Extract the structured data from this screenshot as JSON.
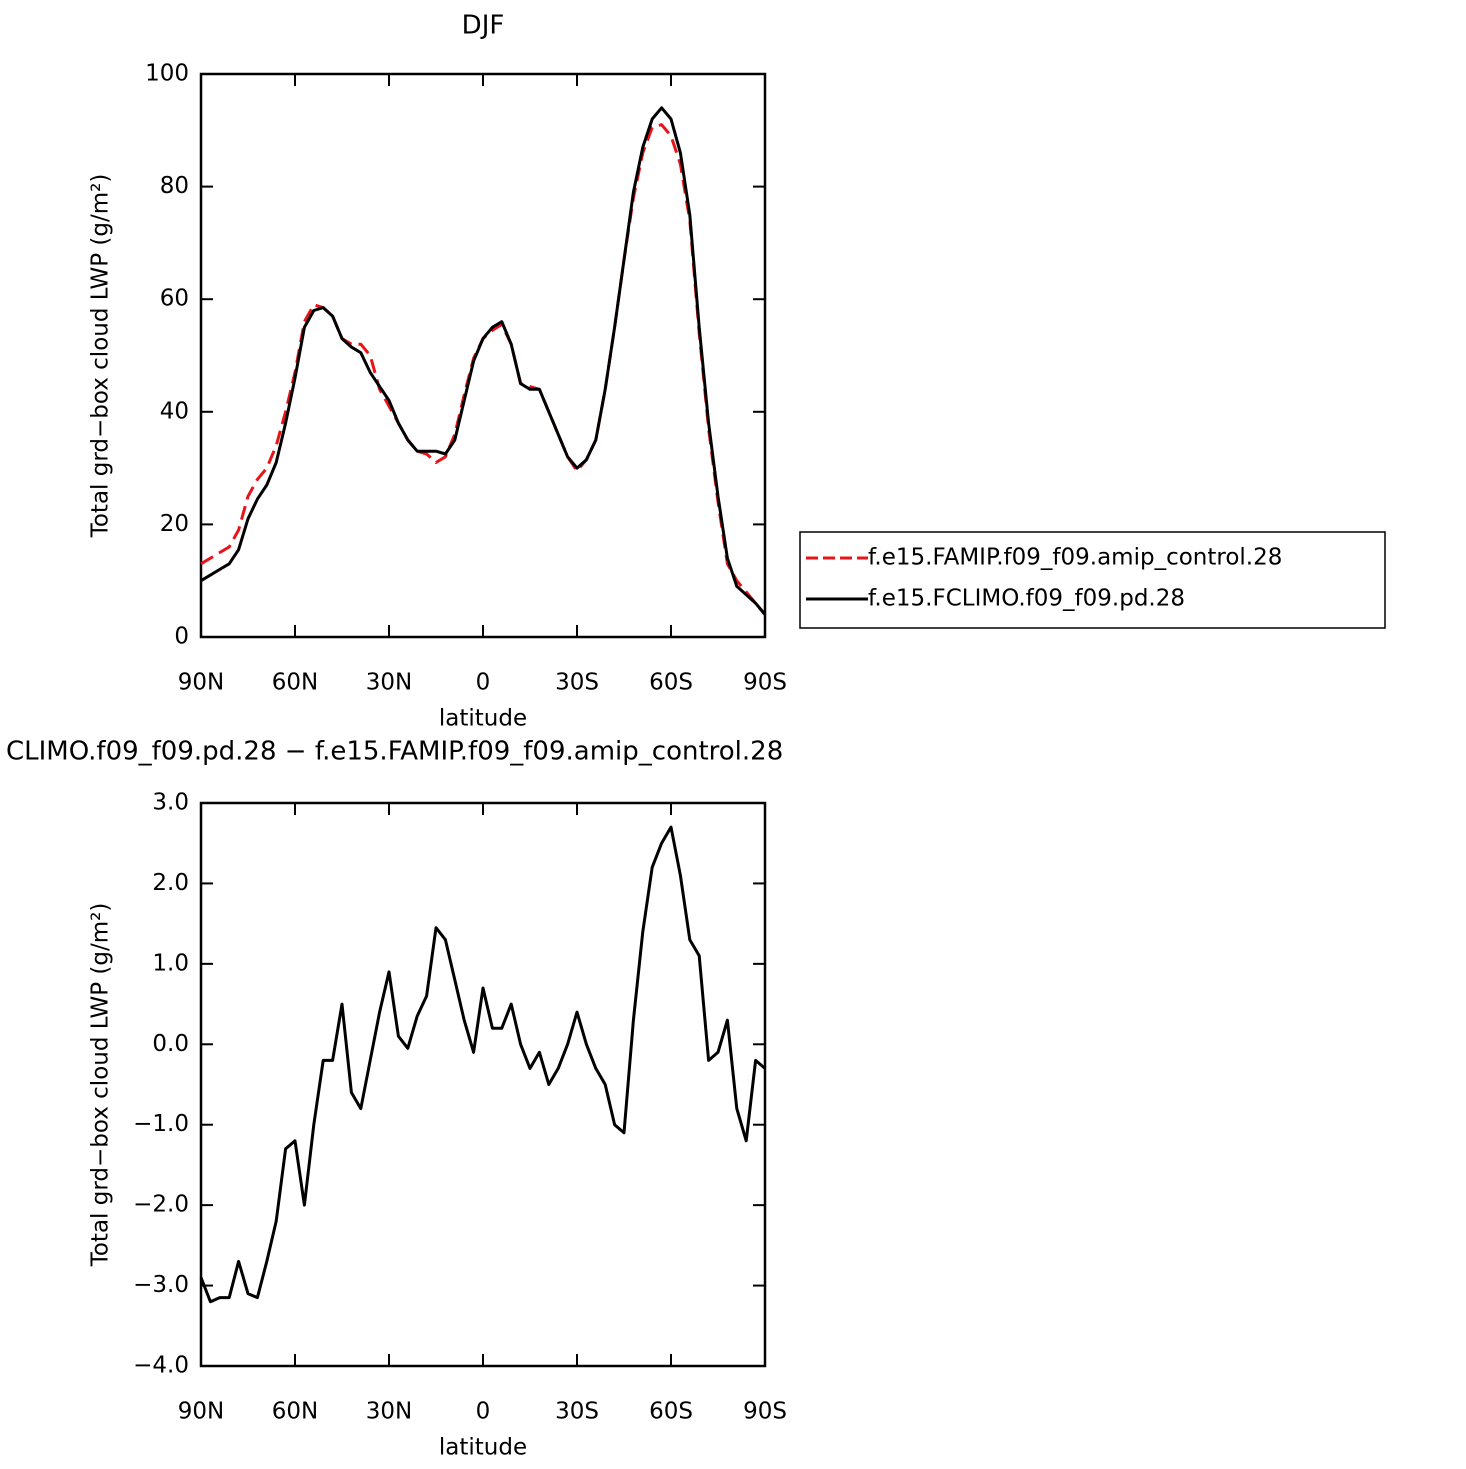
{
  "chart_data": [
    {
      "type": "line",
      "title": "DJF",
      "xlabel": "latitude",
      "ylabel": "Total grd−box cloud LWP (g/m²)",
      "x": [
        90,
        87,
        84,
        81,
        78,
        75,
        72,
        69,
        66,
        63,
        60,
        57,
        54,
        51,
        48,
        45,
        42,
        39,
        36,
        33,
        30,
        27,
        24,
        21,
        18,
        15,
        12,
        9,
        6,
        3,
        0,
        -3,
        -6,
        -9,
        -12,
        -15,
        -18,
        -21,
        -24,
        -27,
        -30,
        -33,
        -36,
        -39,
        -42,
        -45,
        -48,
        -51,
        -54,
        -57,
        -60,
        -63,
        -66,
        -69,
        -72,
        -75,
        -78,
        -81,
        -84,
        -87,
        -90
      ],
      "series": [
        {
          "name": "f.e15.FAMIP.f09_f09.amip_control.28",
          "color": "#e8141a",
          "style": "dashed",
          "values": [
            13,
            14,
            15,
            16,
            19,
            25,
            28,
            30,
            34,
            40,
            47,
            56,
            59,
            58.5,
            57,
            53,
            52,
            52,
            50,
            44,
            41,
            38,
            35,
            33,
            32.5,
            31,
            32,
            36,
            43,
            49.5,
            53,
            54.5,
            55.5,
            52,
            45,
            44.5,
            44,
            40,
            36,
            32,
            29.5,
            31.5,
            35,
            44,
            55,
            67,
            78,
            86,
            90.5,
            91,
            89,
            84,
            74,
            54,
            37,
            24,
            13,
            10,
            8,
            6,
            4
          ]
        },
        {
          "name": "f.e15.FCLIMO.f09_f09.pd.28",
          "color": "#000000",
          "style": "solid",
          "values": [
            10,
            11,
            12,
            13,
            15.5,
            21,
            24.5,
            27,
            31,
            38,
            46,
            55,
            58,
            58.5,
            57,
            53,
            51.5,
            50.5,
            47,
            44.5,
            42,
            38,
            35,
            33,
            33,
            33,
            32.5,
            35,
            42,
            49,
            53,
            55,
            56,
            52,
            45,
            44,
            44,
            40,
            36,
            32,
            30,
            31.5,
            35,
            44,
            55,
            67,
            79,
            87,
            92,
            94,
            92,
            86,
            75,
            55,
            38,
            25,
            14,
            9,
            7.5,
            6,
            4
          ]
        }
      ],
      "xlim": [
        90,
        -90
      ],
      "xticks": [
        {
          "value": 90,
          "label": "90N"
        },
        {
          "value": 60,
          "label": "60N"
        },
        {
          "value": 30,
          "label": "30N"
        },
        0,
        {
          "value": -30,
          "label": "30S"
        },
        {
          "value": -60,
          "label": "60S"
        },
        {
          "value": -90,
          "label": "90S"
        }
      ],
      "ylim": [
        0,
        100
      ],
      "yticks": [
        0,
        20,
        40,
        60,
        80,
        100
      ],
      "legend": "right",
      "grid": false
    },
    {
      "type": "line",
      "title": "CLIMO.f09_f09.pd.28 − f.e15.FAMIP.f09_f09.amip_control.28",
      "xlabel": "latitude",
      "ylabel": "Total grd−box cloud LWP (g/m²)",
      "x": [
        90,
        87,
        84,
        81,
        78,
        75,
        72,
        69,
        66,
        63,
        60,
        57,
        54,
        51,
        48,
        45,
        42,
        39,
        36,
        33,
        30,
        27,
        24,
        21,
        18,
        15,
        12,
        9,
        6,
        3,
        0,
        -3,
        -6,
        -9,
        -12,
        -15,
        -18,
        -21,
        -24,
        -27,
        -30,
        -33,
        -36,
        -39,
        -42,
        -45,
        -48,
        -51,
        -54,
        -57,
        -60,
        -63,
        -66,
        -69,
        -72,
        -75,
        -78,
        -81,
        -84,
        -87,
        -90
      ],
      "series": [
        {
          "color": "#000000",
          "style": "solid",
          "values": [
            -2.9,
            -3.2,
            -3.15,
            -3.15,
            -2.7,
            -3.1,
            -3.15,
            -2.7,
            -2.2,
            -1.3,
            -1.2,
            -2.0,
            -1.0,
            -0.2,
            -0.2,
            0.5,
            -0.6,
            -0.8,
            -0.2,
            0.4,
            0.9,
            0.1,
            -0.05,
            0.35,
            0.6,
            1.45,
            1.3,
            0.8,
            0.3,
            -0.1,
            0.7,
            0.2,
            0.2,
            0.5,
            0.0,
            -0.3,
            -0.1,
            -0.5,
            -0.3,
            0.0,
            0.4,
            0.0,
            -0.3,
            -0.5,
            -1.0,
            -1.1,
            0.3,
            1.4,
            2.2,
            2.5,
            2.7,
            2.1,
            1.3,
            1.1,
            -0.2,
            -0.1,
            0.3,
            -0.8,
            -1.2,
            -0.2,
            -0.3
          ]
        }
      ],
      "xlim": [
        90,
        -90
      ],
      "xticks": [
        {
          "value": 90,
          "label": "90N"
        },
        {
          "value": 60,
          "label": "60N"
        },
        {
          "value": 30,
          "label": "30N"
        },
        0,
        {
          "value": -30,
          "label": "30S"
        },
        {
          "value": -60,
          "label": "60S"
        },
        {
          "value": -90,
          "label": "90S"
        }
      ],
      "ylim": [
        -4,
        3
      ],
      "yticks": [
        {
          "value": -4,
          "label": "−4.0"
        },
        {
          "value": -3,
          "label": "−3.0"
        },
        {
          "value": -2,
          "label": "−2.0"
        },
        {
          "value": -1,
          "label": "−1.0"
        },
        {
          "value": 0,
          "label": "0.0"
        },
        {
          "value": 1,
          "label": "1.0"
        },
        {
          "value": 2,
          "label": "2.0"
        },
        {
          "value": 3,
          "label": "3.0"
        }
      ],
      "grid": false
    }
  ]
}
